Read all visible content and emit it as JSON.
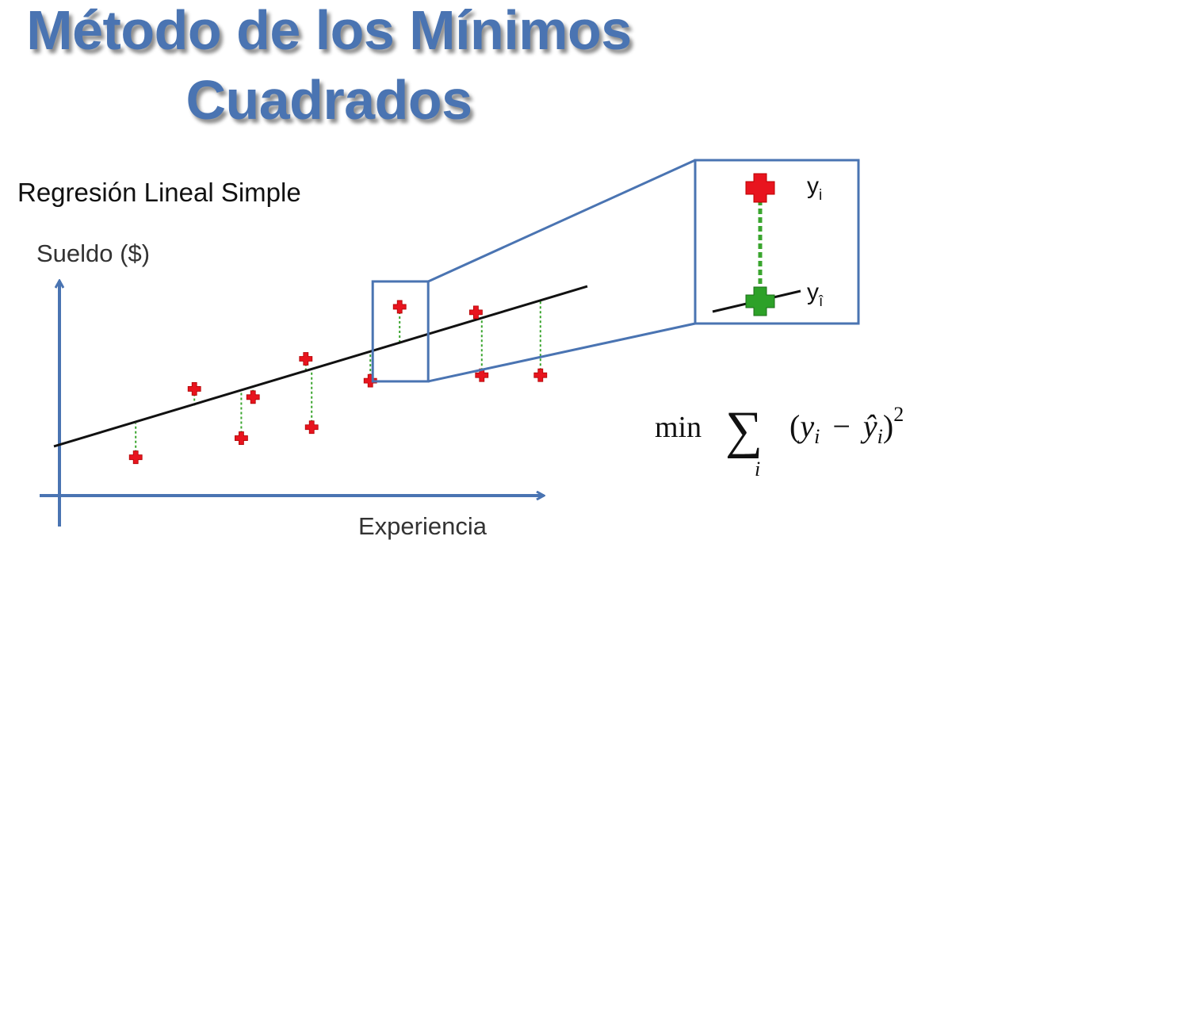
{
  "title": {
    "line1": "Método de los Mínimos",
    "line2": "Cuadrados"
  },
  "subtitle": "Regresión Lineal Simple",
  "chart_data": {
    "type": "scatter",
    "title": "Regresión Lineal Simple",
    "ylabel": "Sueldo ($)",
    "xlabel": "Experiencia",
    "xlim": [
      0,
      10
    ],
    "ylim": [
      0,
      10
    ],
    "grid": false,
    "regression_line": {
      "intercept": 1.8,
      "slope": 0.65,
      "x_range": [
        0,
        9
      ]
    },
    "points": [
      {
        "x": 1.3,
        "y": 1.4
      },
      {
        "x": 2.3,
        "y": 3.9
      },
      {
        "x": 3.1,
        "y": 2.1
      },
      {
        "x": 3.3,
        "y": 3.6
      },
      {
        "x": 4.2,
        "y": 5.0
      },
      {
        "x": 4.3,
        "y": 2.5
      },
      {
        "x": 5.3,
        "y": 4.2
      },
      {
        "x": 5.8,
        "y": 6.9
      },
      {
        "x": 7.1,
        "y": 6.7
      },
      {
        "x": 7.2,
        "y": 4.4
      },
      {
        "x": 8.2,
        "y": 4.4
      }
    ],
    "highlight_index": 7,
    "colors": {
      "axis": "#4a74b2",
      "point": "#e8141e",
      "fitted": "#2da128",
      "residual": "#3aa52e",
      "line": "#111111"
    }
  },
  "zoom": {
    "observed_label": "y",
    "observed_sub": "i",
    "fitted_label": "y",
    "fitted_sub": "î"
  },
  "formula": {
    "min": "min",
    "sigma": "∑",
    "index": "i",
    "y": "y",
    "yhat": "ŷ",
    "sub": "i",
    "minus": "−",
    "power": "2",
    "lparen": "(",
    "rparen": ")"
  }
}
